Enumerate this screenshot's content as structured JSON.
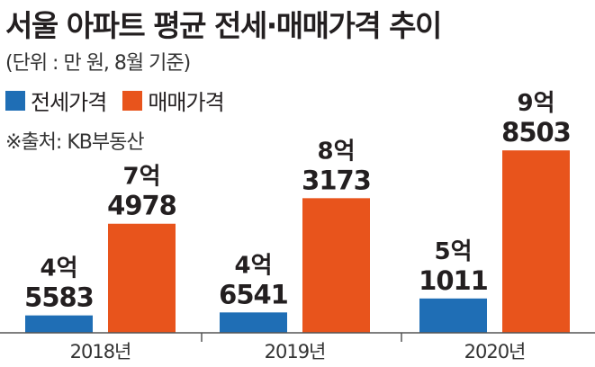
{
  "title": "서울 아파트 평균 전세·매매가격 추이",
  "unit_note": "(단위 : 만 원, 8월 기준)",
  "source": "※출처: KB부동산",
  "colors": {
    "jeonse": "#1f6eb5",
    "sale": "#e8541c",
    "axis": "#555555"
  },
  "chart_data": {
    "type": "bar",
    "categories": [
      "2018년",
      "2019년",
      "2020년"
    ],
    "series": [
      {
        "name": "전세가격",
        "values": [
          45583,
          46541,
          51011
        ],
        "labels": [
          [
            "4억",
            "5583"
          ],
          [
            "4억",
            "6541"
          ],
          [
            "5억",
            "1011"
          ]
        ]
      },
      {
        "name": "매매가격",
        "values": [
          74978,
          83173,
          98503
        ],
        "labels": [
          [
            "7억",
            "4978"
          ],
          [
            "8억",
            "3173"
          ],
          [
            "9억",
            "8503"
          ]
        ]
      }
    ],
    "ylim": [
      40000,
      100000
    ],
    "legend": "top-left",
    "grid": false
  }
}
